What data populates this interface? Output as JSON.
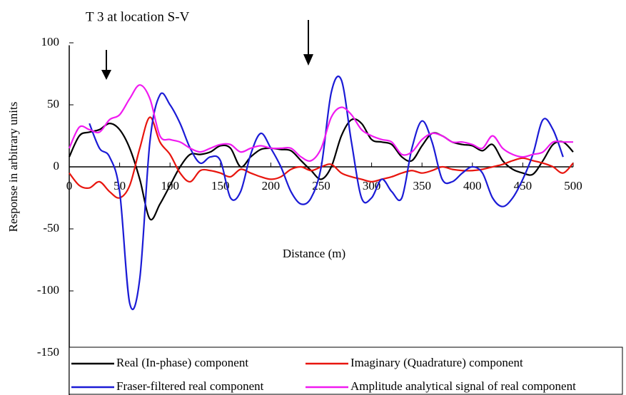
{
  "chart_data": {
    "type": "line",
    "title": "T 3 at location S-V",
    "x_label": "Distance (m)",
    "y_label": "Response in arbitrary units",
    "x": [
      0,
      10,
      20,
      30,
      40,
      50,
      60,
      70,
      80,
      90,
      100,
      110,
      120,
      130,
      140,
      150,
      160,
      170,
      180,
      190,
      200,
      210,
      220,
      230,
      240,
      250,
      260,
      270,
      280,
      290,
      300,
      310,
      320,
      330,
      340,
      350,
      360,
      370,
      380,
      390,
      400,
      410,
      420,
      430,
      440,
      450,
      460,
      470,
      480,
      490,
      500
    ],
    "series": [
      {
        "name": "Real (In-phase) component",
        "color": "#000000",
        "values": [
          8,
          25,
          28,
          30,
          35,
          30,
          15,
          -10,
          -42,
          -30,
          -15,
          0,
          10,
          10,
          12,
          17,
          15,
          0,
          8,
          14,
          15,
          14,
          13,
          5,
          -3,
          -10,
          0,
          25,
          38,
          35,
          22,
          20,
          18,
          8,
          5,
          17,
          27,
          25,
          20,
          18,
          17,
          13,
          18,
          5,
          -2,
          -5,
          -6,
          5,
          18,
          20,
          12
        ]
      },
      {
        "name": "Imaginary (Quadrature) component",
        "color": "#e8150e",
        "values": [
          -5,
          -15,
          -17,
          -12,
          -20,
          -25,
          -15,
          15,
          40,
          20,
          10,
          -5,
          -12,
          -3,
          -3,
          -5,
          -8,
          -2,
          -5,
          -8,
          -10,
          -8,
          -2,
          0,
          -3,
          0,
          2,
          -5,
          -8,
          -10,
          -12,
          -10,
          -8,
          -5,
          -3,
          -5,
          -3,
          0,
          -2,
          -3,
          -3,
          -2,
          0,
          2,
          5,
          7,
          5,
          3,
          0,
          -5,
          3
        ]
      },
      {
        "name": "Fraser-filtered real component",
        "color": "#1b1bd6",
        "values": [
          null,
          null,
          35,
          15,
          8,
          -20,
          -110,
          -90,
          20,
          58,
          50,
          35,
          15,
          3,
          8,
          5,
          -25,
          -20,
          10,
          27,
          15,
          0,
          -20,
          -30,
          -25,
          0,
          60,
          70,
          20,
          -25,
          -25,
          -10,
          -20,
          -25,
          15,
          37,
          20,
          -10,
          -12,
          -5,
          0,
          -5,
          -25,
          -32,
          -25,
          -10,
          10,
          38,
          30,
          8,
          null
        ]
      },
      {
        "name": "Amplitude analytical signal of real component",
        "color": "#f01af0",
        "values": [
          15,
          32,
          30,
          28,
          38,
          42,
          55,
          66,
          55,
          25,
          22,
          20,
          15,
          12,
          15,
          18,
          18,
          12,
          15,
          17,
          15,
          15,
          15,
          8,
          5,
          15,
          40,
          48,
          42,
          30,
          25,
          22,
          20,
          10,
          12,
          22,
          27,
          25,
          20,
          20,
          18,
          15,
          25,
          15,
          10,
          8,
          10,
          12,
          20,
          20,
          20
        ]
      }
    ],
    "xlim": [
      0,
      500
    ],
    "xticks": [
      0,
      50,
      100,
      150,
      200,
      250,
      300,
      350,
      400,
      450,
      500
    ],
    "ylim": [
      -183,
      98
    ],
    "yticks": [
      -150,
      -100,
      -50,
      0,
      50,
      100
    ],
    "legend": "bottom"
  }
}
